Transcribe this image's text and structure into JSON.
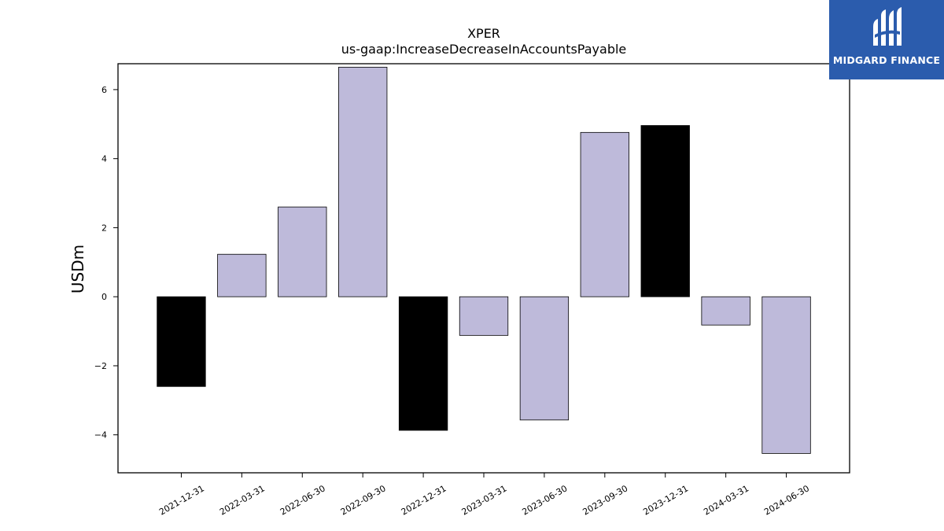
{
  "chart_data": {
    "type": "bar",
    "title": "XPER",
    "subtitle": "us-gaap:IncreaseDecreaseInAccountsPayable",
    "xlabel": "",
    "ylabel": "USDm",
    "ylim": [
      -5.1,
      6.75
    ],
    "yticks": [
      -4,
      -2,
      0,
      2,
      4,
      6
    ],
    "ytick_labels": [
      "−4",
      "−2",
      "0",
      "2",
      "4",
      "6"
    ],
    "categories": [
      "2021-12-31",
      "2022-03-31",
      "2022-06-30",
      "2022-09-30",
      "2022-12-31",
      "2023-03-31",
      "2023-06-30",
      "2023-09-30",
      "2023-12-31",
      "2024-03-31",
      "2024-06-30"
    ],
    "values": [
      -2.6,
      1.23,
      2.6,
      6.65,
      -3.87,
      -1.12,
      -3.57,
      4.76,
      4.96,
      -0.82,
      -4.54
    ],
    "bar_colors": [
      "#000000",
      "#bebada",
      "#bebada",
      "#bebada",
      "#000000",
      "#bebada",
      "#bebada",
      "#bebada",
      "#000000",
      "#bebada",
      "#bebada"
    ],
    "grid": false,
    "legend": "none"
  },
  "logo": {
    "text": "MIDGARD FINANCE",
    "background": "#2b5cad",
    "icon": "midgard-logo-icon"
  }
}
